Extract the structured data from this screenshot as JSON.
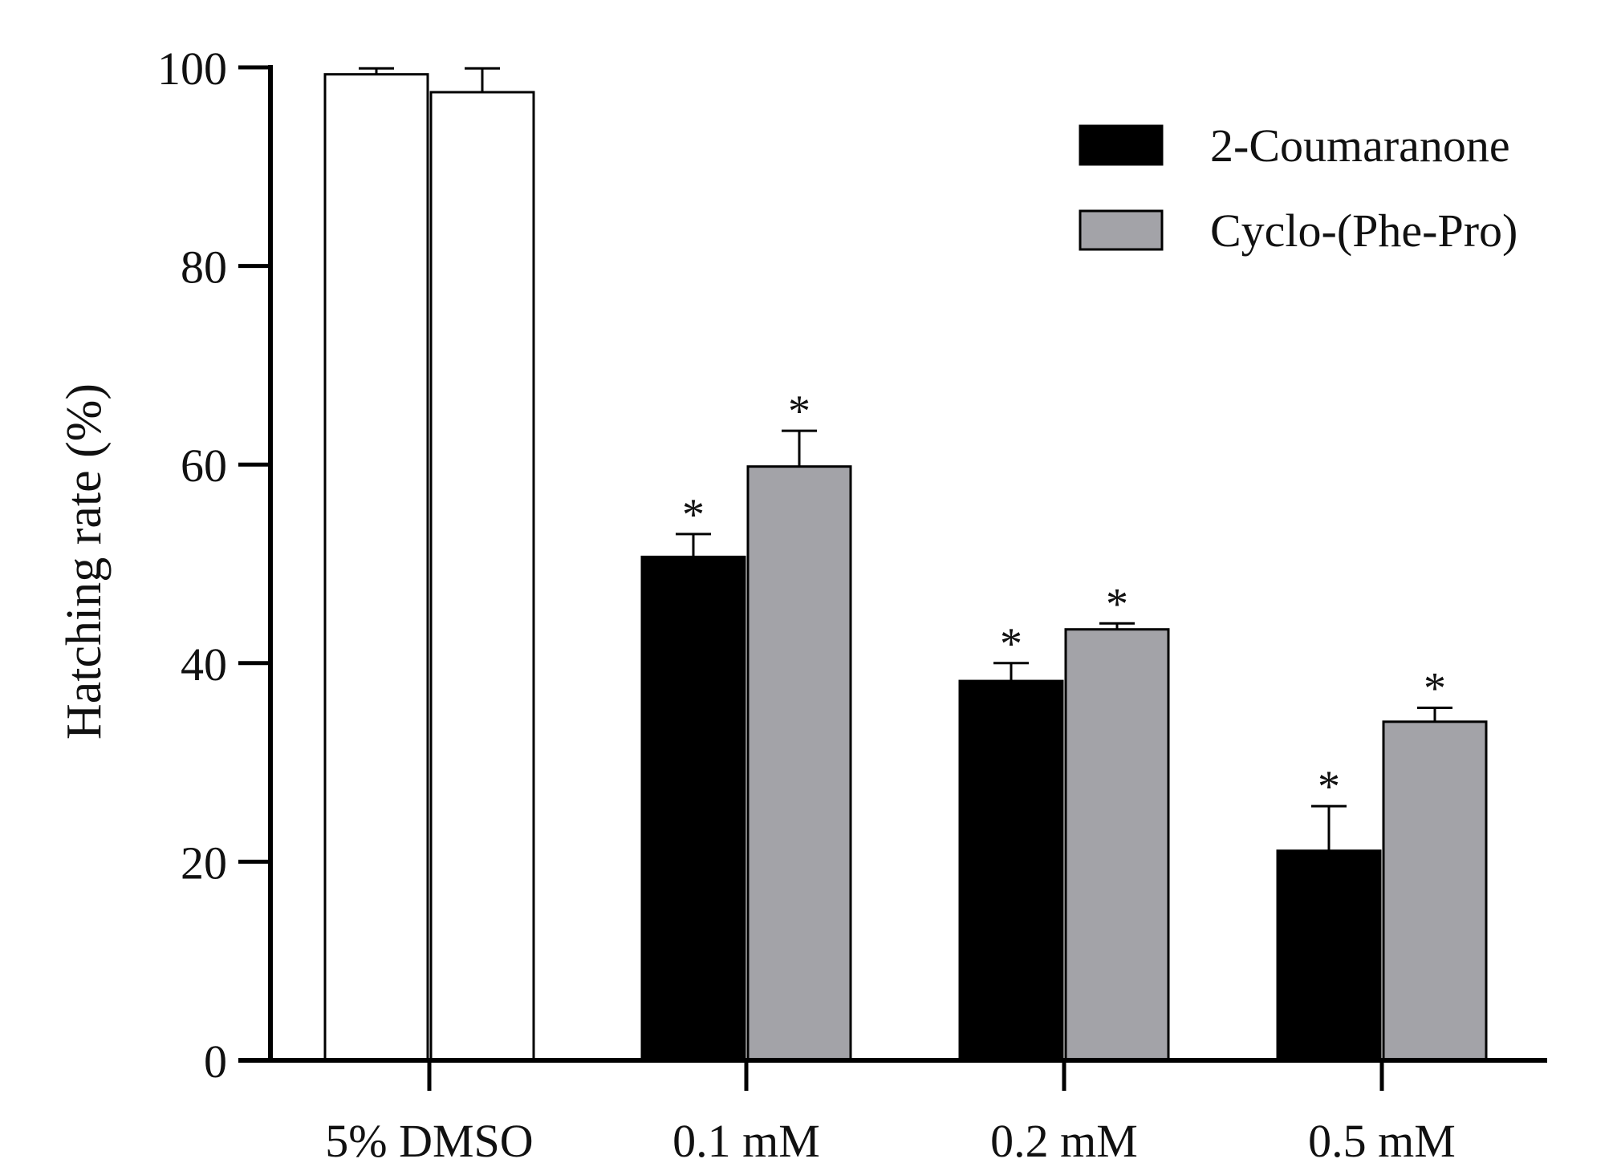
{
  "chart_data": {
    "type": "bar",
    "title": "",
    "xlabel": "",
    "ylabel": "Hatching rate (%)",
    "ylim": [
      0,
      100
    ],
    "yticks": [
      0,
      20,
      40,
      60,
      80,
      100
    ],
    "grid": false,
    "legend_position": "top-right",
    "categories": [
      "5% DMSO",
      "0.1 mM",
      "0.2 mM",
      "0.5 mM"
    ],
    "series": [
      {
        "name": "2-Coumaranone",
        "color": "#000000",
        "values": [
          99.3,
          50.7,
          38.2,
          21.1
        ],
        "errors": [
          0.6,
          2.3,
          1.8,
          4.5
        ],
        "annotations": [
          "",
          "*",
          "*",
          "*"
        ]
      },
      {
        "name": "Cyclo-(Phe-Pro)",
        "color": "#a3a3a8",
        "values": [
          97.5,
          59.8,
          43.4,
          34.1
        ],
        "errors": [
          2.4,
          3.6,
          0.6,
          1.4
        ],
        "annotations": [
          "",
          "*",
          "*",
          "*"
        ]
      }
    ],
    "control_bar_color": "#ffffff",
    "control_category_index": 0
  }
}
